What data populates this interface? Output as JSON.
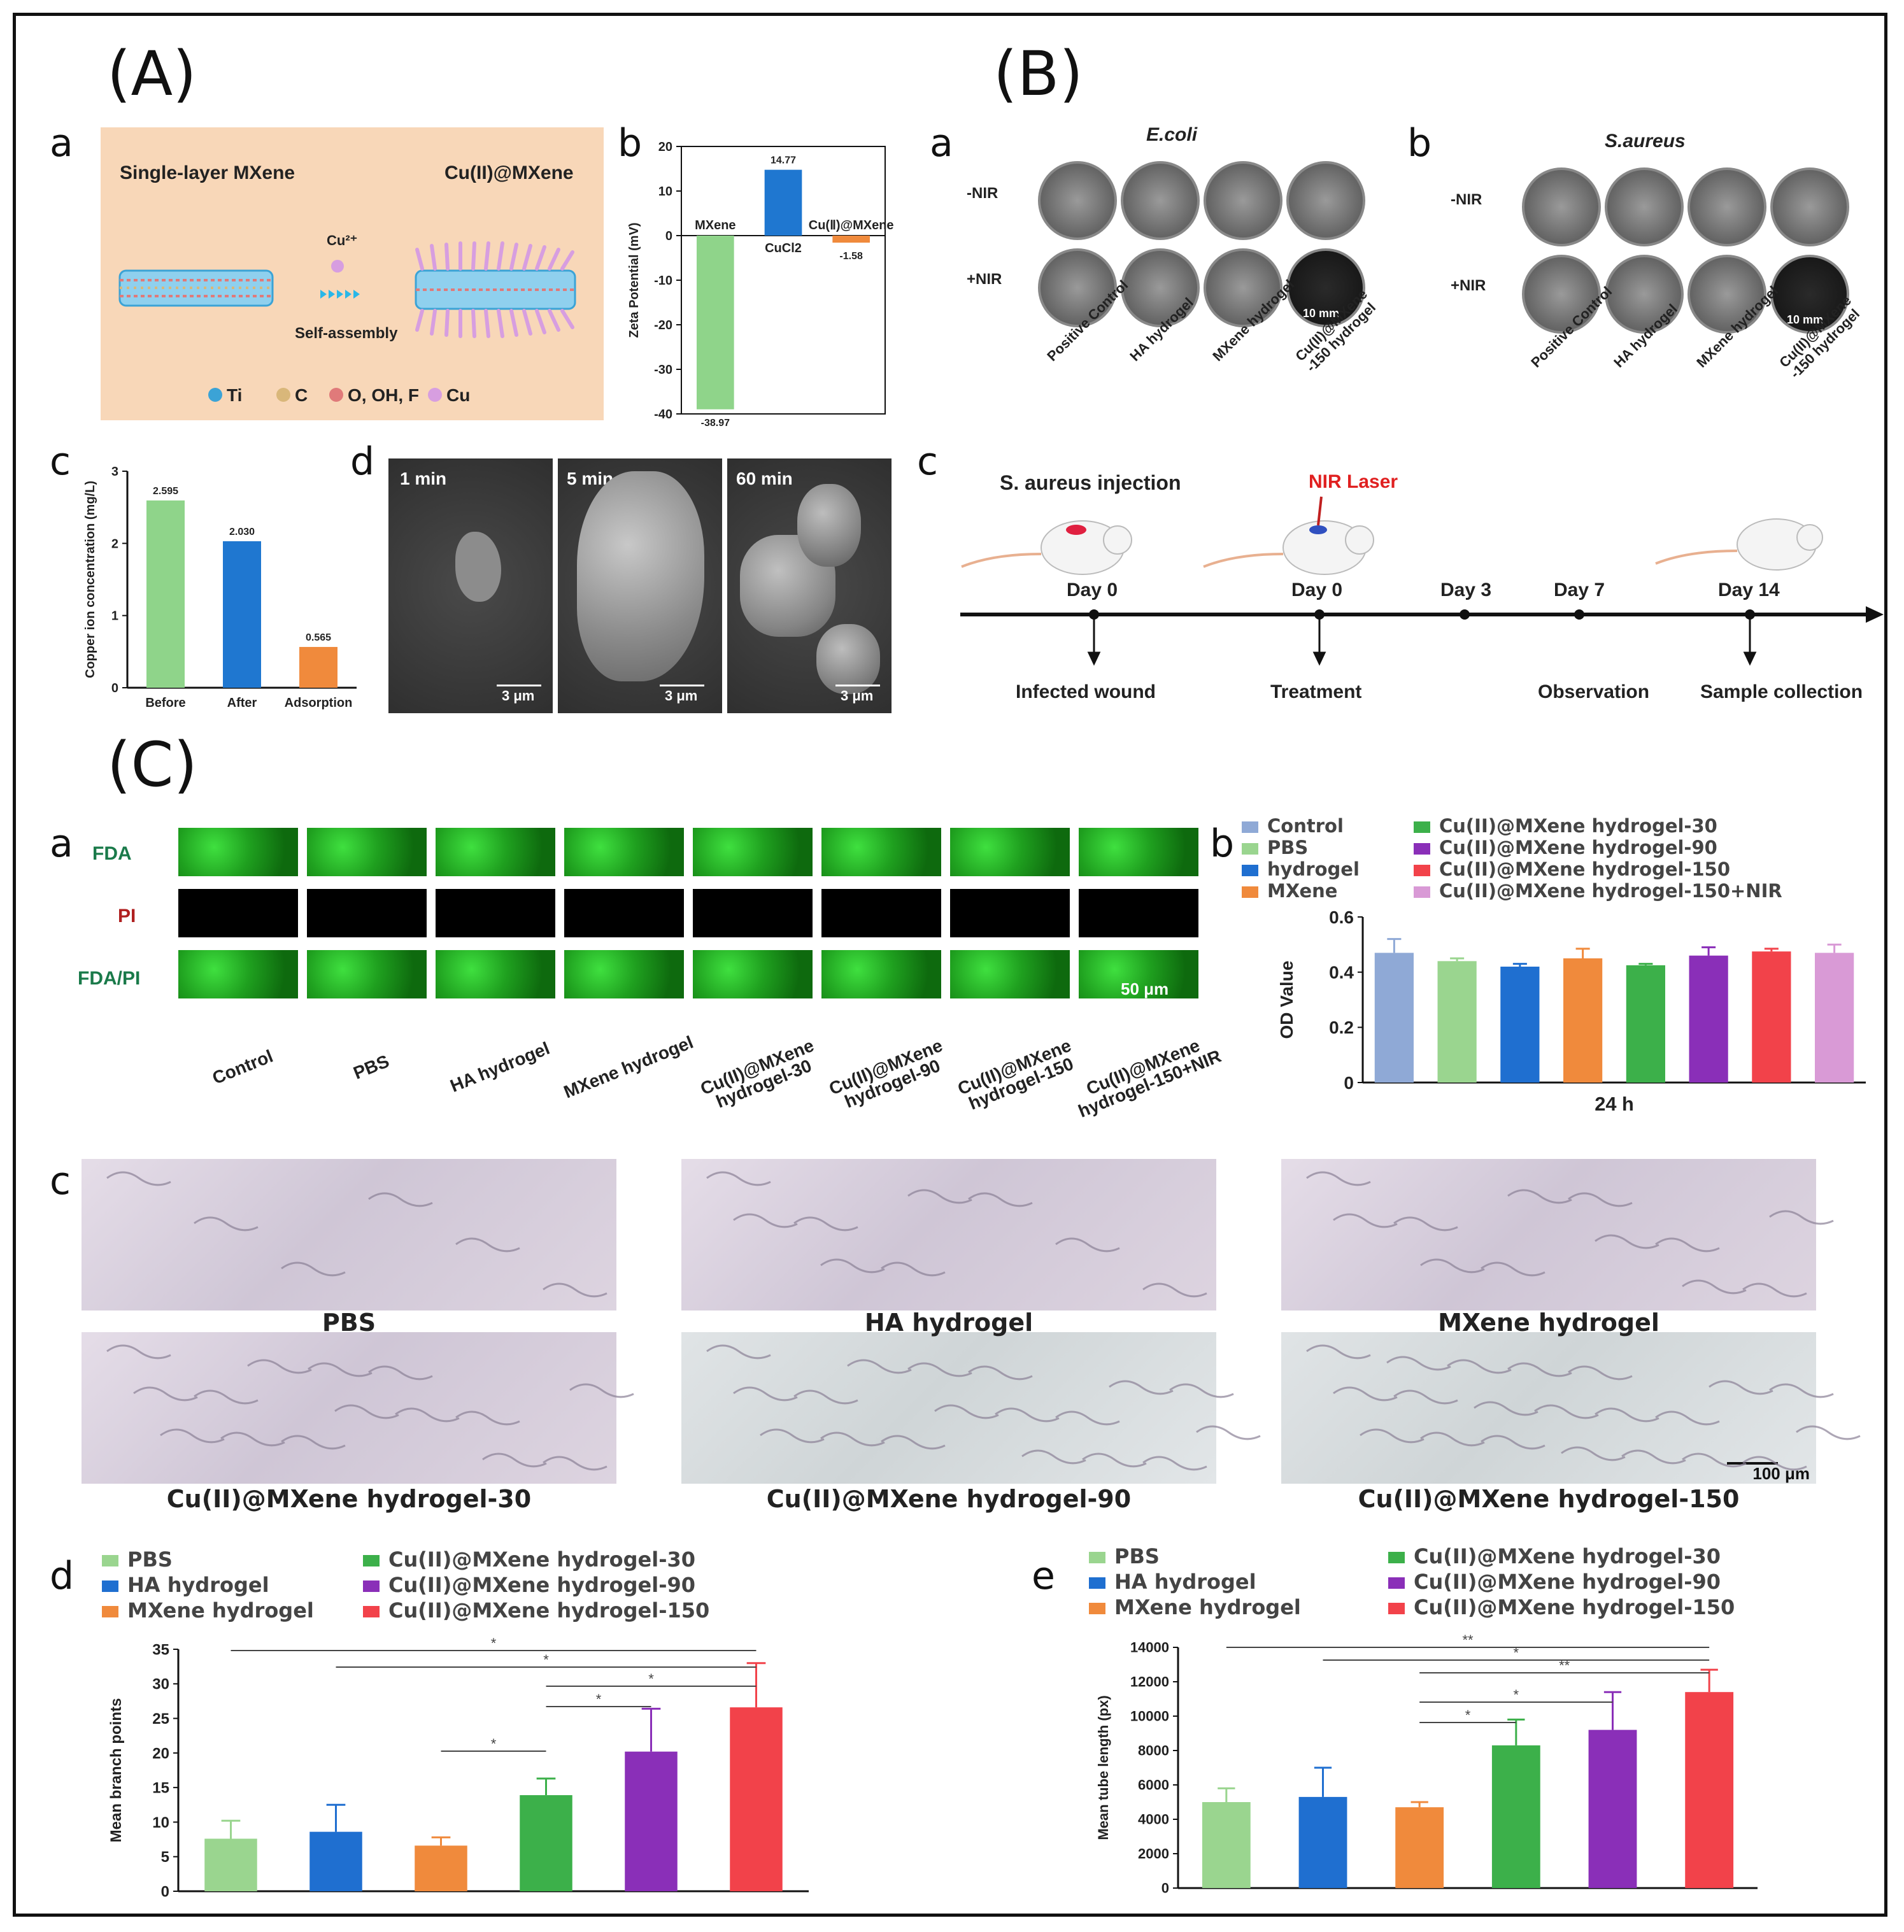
{
  "sections": {
    "A": "(A)",
    "B": "(B)",
    "C": "(C)"
  },
  "panel_letters": {
    "Aa": "a",
    "Ab": "b",
    "Ac": "c",
    "Ad": "d",
    "Ba": "a",
    "Bb": "b",
    "Bc": "c",
    "Ca": "a",
    "Cb": "b",
    "Cc": "c",
    "Cd": "d",
    "Ce": "e"
  },
  "A_a": {
    "left_title": "Single-layer MXene",
    "right_title": "Cu(II)@MXene",
    "ion": "Cu²⁺",
    "process": "Self-assembly",
    "legend": [
      {
        "label": "Ti",
        "color": "#3ba3d6"
      },
      {
        "label": "C",
        "color": "#d9b77a"
      },
      {
        "label": "O, OH, F",
        "color": "#e07a7a"
      },
      {
        "label": "Cu",
        "color": "#d79ee0"
      }
    ]
  },
  "A_b": {
    "chart_data": {
      "type": "bar",
      "ylabel": "Zeta Potential (mV)",
      "ylim": [
        -40,
        20
      ],
      "yticks": [
        20,
        10,
        0,
        -10,
        -20,
        -30,
        -40
      ],
      "categories": [
        "MXene",
        "CuCl2",
        "Cu(Ⅱ)@MXene"
      ],
      "values": [
        -38.97,
        14.77,
        -1.58
      ],
      "value_labels": [
        "-38.97",
        "14.77",
        "-1.58"
      ],
      "colors": [
        "#8fd48a",
        "#1f77d0",
        "#f08a3c"
      ]
    }
  },
  "A_c": {
    "chart_data": {
      "type": "bar",
      "ylabel": "Copper ion concentration (mg/L)",
      "ylim": [
        0,
        3
      ],
      "yticks": [
        0,
        1,
        2,
        3
      ],
      "categories": [
        "Before",
        "After",
        "Adsorption"
      ],
      "values": [
        2.595,
        2.03,
        0.565
      ],
      "value_labels": [
        "2.595",
        "2.030",
        "0.565"
      ],
      "colors": [
        "#8fd48a",
        "#1f77d0",
        "#f08a3c"
      ]
    }
  },
  "A_d": {
    "times": [
      "1 min",
      "5 min",
      "60 min"
    ],
    "scale": "3 μm"
  },
  "B_a": {
    "title": "E.coli",
    "rows": [
      "-NIR",
      "+NIR"
    ],
    "scale": "10 mm"
  },
  "B_b": {
    "title": "S.aureus",
    "rows": [
      "-NIR",
      "+NIR"
    ],
    "scale": "10 mm"
  },
  "B_groups": [
    "Positive Control",
    "HA hydrogel",
    "MXene hydrogel",
    "Cu(II)@MXene -150 hydrogel"
  ],
  "B_c": {
    "top_labels": [
      "S. aureus injection",
      "NIR Laser"
    ],
    "days": [
      "Day 0",
      "Day 0",
      "Day 3",
      "Day 7",
      "Day 14"
    ],
    "events": [
      "Infected wound",
      "Treatment",
      "Observation",
      "Sample collection"
    ]
  },
  "C_a": {
    "rows": [
      "FDA",
      "PI",
      "FDA/PI"
    ],
    "scale": "50 μm",
    "groups": [
      "Control",
      "PBS",
      "HA hydrogel",
      "MXene hydrogel",
      "Cu(II)@MXene hydrogel-30",
      "Cu(II)@MXene hydrogel-90",
      "Cu(II)@MXene hydrogel-150",
      "Cu(II)@MXene hydrogel-150+NIR"
    ]
  },
  "C_b": {
    "legend": [
      {
        "label": "Control",
        "color": "#8fa9d6"
      },
      {
        "label": "PBS",
        "color": "#9ad58f"
      },
      {
        "label": "hydrogel",
        "color": "#1f6fd0"
      },
      {
        "label": "MXene",
        "color": "#f08a3c"
      },
      {
        "label": "Cu(II)@MXene hydrogel-30",
        "color": "#3cb04a"
      },
      {
        "label": "Cu(II)@MXene hydrogel-90",
        "color": "#8a2fb8"
      },
      {
        "label": "Cu(II)@MXene hydrogel-150",
        "color": "#f2424a"
      },
      {
        "label": "Cu(II)@MXene hydrogel-150+NIR",
        "color": "#d99ad6"
      }
    ],
    "chart_data": {
      "type": "bar",
      "ylabel": "OD Value",
      "xlabel": "24 h",
      "ylim": [
        0,
        0.6
      ],
      "yticks": [
        0,
        0.2,
        0.4,
        0.6
      ],
      "values": [
        0.47,
        0.44,
        0.42,
        0.45,
        0.425,
        0.46,
        0.475,
        0.47
      ],
      "errors": [
        0.05,
        0.01,
        0.01,
        0.035,
        0.005,
        0.03,
        0.01,
        0.03
      ]
    }
  },
  "C_c": {
    "captions": [
      "PBS",
      "HA hydrogel",
      "MXene hydrogel",
      "Cu(II)@MXene hydrogel-30",
      "Cu(II)@MXene hydrogel-90",
      "Cu(II)@MXene hydrogel-150"
    ],
    "scale": "100 μm"
  },
  "C_de_legend": [
    {
      "label": "PBS",
      "color": "#9ad58f"
    },
    {
      "label": "Cu(II)@MXene hydrogel-30",
      "color": "#3cb04a"
    },
    {
      "label": "HA hydrogel",
      "color": "#1f6fd0"
    },
    {
      "label": "Cu(II)@MXene hydrogel-90",
      "color": "#8a2fb8"
    },
    {
      "label": "MXene hydrogel",
      "color": "#f08a3c"
    },
    {
      "label": "Cu(II)@MXene hydrogel-150",
      "color": "#f2424a"
    }
  ],
  "C_d": {
    "chart_data": {
      "type": "bar",
      "ylabel": "Mean branch points",
      "ylim": [
        0,
        35
      ],
      "yticks": [
        0,
        5,
        10,
        15,
        20,
        25,
        30,
        35
      ],
      "series_order": [
        "PBS",
        "HA hydrogel",
        "MXene hydrogel",
        "Cu(II)@MXene hydrogel-30",
        "Cu(II)@MXene hydrogel-90",
        "Cu(II)@MXene hydrogel-150"
      ],
      "values": [
        7.6,
        8.6,
        6.6,
        13.9,
        20.2,
        26.6
      ],
      "errors": [
        2.6,
        3.9,
        1.2,
        2.4,
        6.2,
        6.4
      ],
      "colors": [
        "#9ad58f",
        "#1f6fd0",
        "#f08a3c",
        "#3cb04a",
        "#8a2fb8",
        "#f2424a"
      ],
      "significance": [
        {
          "from": 0,
          "to": 5,
          "label": "*"
        },
        {
          "from": 1,
          "to": 5,
          "label": "*"
        },
        {
          "from": 3,
          "to": 5,
          "label": "*"
        },
        {
          "from": 3,
          "to": 4,
          "label": "*"
        },
        {
          "from": 2,
          "to": 3,
          "label": "*"
        }
      ]
    }
  },
  "C_e": {
    "chart_data": {
      "type": "bar",
      "ylabel": "Mean tube length (px)",
      "ylim": [
        0,
        14000
      ],
      "yticks": [
        0,
        2000,
        4000,
        6000,
        8000,
        10000,
        12000,
        14000
      ],
      "series_order": [
        "PBS",
        "HA hydrogel",
        "MXene hydrogel",
        "Cu(II)@MXene hydrogel-30",
        "Cu(II)@MXene hydrogel-90",
        "Cu(II)@MXene hydrogel-150"
      ],
      "values": [
        5000,
        5300,
        4700,
        8300,
        9200,
        11400
      ],
      "errors": [
        800,
        1700,
        300,
        1500,
        2200,
        1300
      ],
      "colors": [
        "#9ad58f",
        "#1f6fd0",
        "#f08a3c",
        "#3cb04a",
        "#8a2fb8",
        "#f2424a"
      ],
      "significance": [
        {
          "from": 0,
          "to": 5,
          "label": "**"
        },
        {
          "from": 1,
          "to": 5,
          "label": "*"
        },
        {
          "from": 2,
          "to": 5,
          "label": "**"
        },
        {
          "from": 2,
          "to": 4,
          "label": "*"
        },
        {
          "from": 2,
          "to": 3,
          "label": "*"
        }
      ]
    }
  }
}
